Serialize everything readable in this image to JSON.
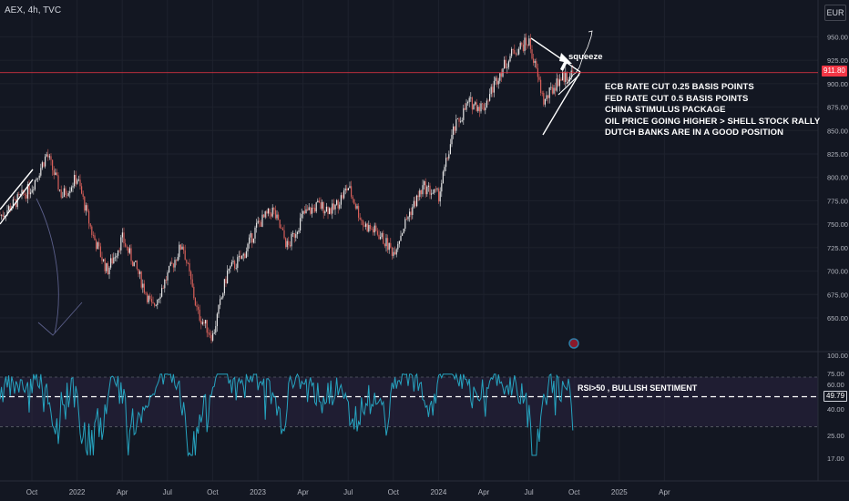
{
  "header": {
    "symbol": "AEX, 4h, TVC",
    "currency": "EUR"
  },
  "colors": {
    "background": "#131722",
    "grid": "#1e222d",
    "up": "#e6e6e6",
    "down": "#d9605a",
    "rsi_line": "#26a4c0",
    "rsi_band": "#2a2240",
    "price_line": "#f23645",
    "rsi_badge": "#131722",
    "annotation": "#ffffff"
  },
  "chart_data": [
    {
      "type": "candlestick",
      "title": "",
      "x_tick_labels": [
        "Oct",
        "2022",
        "Apr",
        "Jul",
        "Oct",
        "2023",
        "Apr",
        "Jul",
        "Oct",
        "2024",
        "Apr",
        "Jul",
        "Oct",
        "2025",
        "Apr"
      ],
      "y_tick_labels": [
        "650.00",
        "675.00",
        "700.00",
        "725.00",
        "750.00",
        "775.00",
        "800.00",
        "825.00",
        "850.00",
        "875.00",
        "900.00",
        "925.00",
        "950.00"
      ],
      "ylim": [
        615,
        965
      ],
      "last_price": 911.8,
      "last_price_label": "911.80",
      "approx_close_path": [
        {
          "t": "2021-08",
          "v": 760
        },
        {
          "t": "2021-10",
          "v": 790
        },
        {
          "t": "2021-11",
          "v": 825
        },
        {
          "t": "2021-12",
          "v": 780
        },
        {
          "t": "2022-01",
          "v": 800
        },
        {
          "t": "2022-02",
          "v": 740
        },
        {
          "t": "2022-03",
          "v": 700
        },
        {
          "t": "2022-04",
          "v": 735
        },
        {
          "t": "2022-05",
          "v": 700
        },
        {
          "t": "2022-06",
          "v": 660
        },
        {
          "t": "2022-08",
          "v": 730
        },
        {
          "t": "2022-09",
          "v": 655
        },
        {
          "t": "2022-10",
          "v": 630
        },
        {
          "t": "2022-11",
          "v": 700
        },
        {
          "t": "2022-12",
          "v": 715
        },
        {
          "t": "2023-01",
          "v": 750
        },
        {
          "t": "2023-02",
          "v": 765
        },
        {
          "t": "2023-03",
          "v": 725
        },
        {
          "t": "2023-04",
          "v": 760
        },
        {
          "t": "2023-05",
          "v": 770
        },
        {
          "t": "2023-06",
          "v": 765
        },
        {
          "t": "2023-07",
          "v": 790
        },
        {
          "t": "2023-08",
          "v": 750
        },
        {
          "t": "2023-09",
          "v": 740
        },
        {
          "t": "2023-10",
          "v": 720
        },
        {
          "t": "2023-11",
          "v": 760
        },
        {
          "t": "2023-12",
          "v": 790
        },
        {
          "t": "2024-01",
          "v": 780
        },
        {
          "t": "2024-02",
          "v": 850
        },
        {
          "t": "2024-03",
          "v": 880
        },
        {
          "t": "2024-04",
          "v": 875
        },
        {
          "t": "2024-05",
          "v": 910
        },
        {
          "t": "2024-06",
          "v": 935
        },
        {
          "t": "2024-07",
          "v": 945
        },
        {
          "t": "2024-08",
          "v": 880
        },
        {
          "t": "2024-09",
          "v": 905
        },
        {
          "t": "2024-10",
          "v": 912
        }
      ],
      "annotations": [
        "squeeze",
        "ECB RATE CUT 0.25 BASIS POINTS",
        "FED RATE CUT 0.5 BASIS POINTS",
        "CHINA STIMULUS PACKAGE",
        "OIL PRICE GOING HIGHER > SHELL STOCK RALLY",
        "DUTCH BANKS ARE IN A GOOD POSITION"
      ]
    },
    {
      "type": "line",
      "title": "",
      "y_tick_labels": [
        "17.00",
        "25.00",
        "40.00",
        "60.00",
        "75.00",
        "100.00"
      ],
      "ylim": [
        12,
        100
      ],
      "band": [
        30,
        70
      ],
      "last_value": 49.79,
      "last_value_label": "49.79",
      "annotation": "RSI>50 , BULLISH SENTIMENT"
    }
  ]
}
